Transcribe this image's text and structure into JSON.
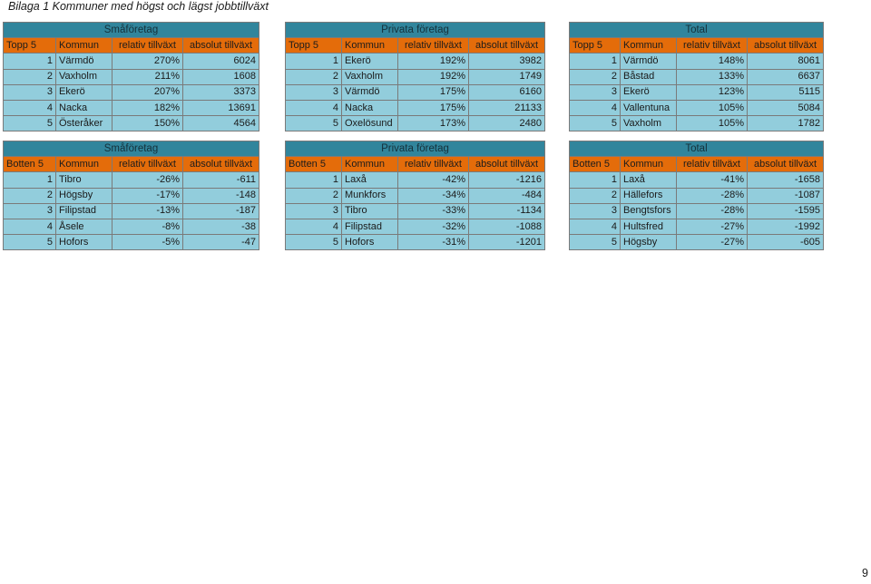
{
  "title": "Bilaga 1 Kommuner med högst och lägst jobbtillväxt",
  "page_number": "9",
  "top_tables": [
    {
      "title": "Småföretag",
      "headers": [
        "Topp 5",
        "Kommun",
        "relativ tillväxt",
        "absolut tillväxt"
      ],
      "rows": [
        [
          "1",
          "Värmdö",
          "270%",
          "6024"
        ],
        [
          "2",
          "Vaxholm",
          "211%",
          "1608"
        ],
        [
          "3",
          "Ekerö",
          "207%",
          "3373"
        ],
        [
          "4",
          "Nacka",
          "182%",
          "13691"
        ],
        [
          "5",
          "Österåker",
          "150%",
          "4564"
        ]
      ]
    },
    {
      "title": "Privata företag",
      "headers": [
        "Topp 5",
        "Kommun",
        "relativ tillväxt",
        "absolut tillväxt"
      ],
      "rows": [
        [
          "1",
          "Ekerö",
          "192%",
          "3982"
        ],
        [
          "2",
          "Vaxholm",
          "192%",
          "1749"
        ],
        [
          "3",
          "Värmdö",
          "175%",
          "6160"
        ],
        [
          "4",
          "Nacka",
          "175%",
          "21133"
        ],
        [
          "5",
          "Oxelösund",
          "173%",
          "2480"
        ]
      ]
    },
    {
      "title": "Total",
      "headers": [
        "Topp 5",
        "Kommun",
        "relativ tillväxt",
        "absolut tillväxt"
      ],
      "rows": [
        [
          "1",
          "Värmdö",
          "148%",
          "8061"
        ],
        [
          "2",
          "Båstad",
          "133%",
          "6637"
        ],
        [
          "3",
          "Ekerö",
          "123%",
          "5115"
        ],
        [
          "4",
          "Vallentuna",
          "105%",
          "5084"
        ],
        [
          "5",
          "Vaxholm",
          "105%",
          "1782"
        ]
      ]
    }
  ],
  "bottom_tables": [
    {
      "title": "Småföretag",
      "headers": [
        "Botten 5",
        "Kommun",
        "relativ tillväxt",
        "absolut tillväxt"
      ],
      "rows": [
        [
          "1",
          "Tibro",
          "-26%",
          "-611"
        ],
        [
          "2",
          "Högsby",
          "-17%",
          "-148"
        ],
        [
          "3",
          "Filipstad",
          "-13%",
          "-187"
        ],
        [
          "4",
          "Åsele",
          "-8%",
          "-38"
        ],
        [
          "5",
          "Hofors",
          "-5%",
          "-47"
        ]
      ]
    },
    {
      "title": "Privata företag",
      "headers": [
        "Botten 5",
        "Kommun",
        "relativ tillväxt",
        "absolut tillväxt"
      ],
      "rows": [
        [
          "1",
          "Laxå",
          "-42%",
          "-1216"
        ],
        [
          "2",
          "Munkfors",
          "-34%",
          "-484"
        ],
        [
          "3",
          "Tibro",
          "-33%",
          "-1134"
        ],
        [
          "4",
          "Filipstad",
          "-32%",
          "-1088"
        ],
        [
          "5",
          "Hofors",
          "-31%",
          "-1201"
        ]
      ]
    },
    {
      "title": "Total",
      "headers": [
        "Botten 5",
        "Kommun",
        "relativ tillväxt",
        "absolut tillväxt"
      ],
      "rows": [
        [
          "1",
          "Laxå",
          "-41%",
          "-1658"
        ],
        [
          "2",
          "Hällefors",
          "-28%",
          "-1087"
        ],
        [
          "3",
          "Bengtsfors",
          "-28%",
          "-1595"
        ],
        [
          "4",
          "Hultsfred",
          "-27%",
          "-1992"
        ],
        [
          "5",
          "Högsby",
          "-27%",
          "-605"
        ]
      ]
    }
  ],
  "colors": {
    "title_band": "#31859c",
    "header_band": "#e46c0a",
    "row_fill": "#92cddc"
  }
}
